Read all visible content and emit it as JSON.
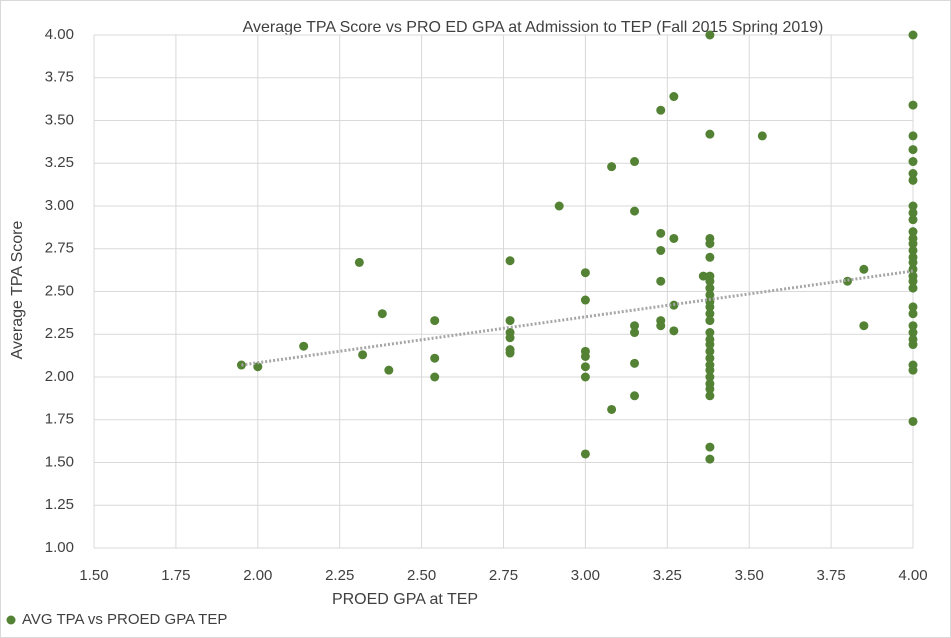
{
  "chart_data": {
    "type": "scatter",
    "title": "Average TPA Score vs PRO ED GPA at Admission to TEP (Fall 2015 Spring 2019)",
    "x_label": "PROED GPA at TEP",
    "y_label": "Average TPA Score",
    "xlim": [
      1.5,
      4.0
    ],
    "ylim": [
      1.0,
      4.0
    ],
    "xticks": [
      {
        "value": 1.5,
        "label": "1.50"
      },
      {
        "value": 1.75,
        "label": "1.75"
      },
      {
        "value": 2.0,
        "label": "2.00"
      },
      {
        "value": 2.25,
        "label": "2.25"
      },
      {
        "value": 2.5,
        "label": "2.50"
      },
      {
        "value": 2.75,
        "label": "2.75"
      },
      {
        "value": 3.0,
        "label": "3.00"
      },
      {
        "value": 3.25,
        "label": "3.25"
      },
      {
        "value": 3.5,
        "label": "3.50"
      },
      {
        "value": 3.75,
        "label": "3.75"
      },
      {
        "value": 4.0,
        "label": "4.00"
      }
    ],
    "yticks": [
      {
        "value": 1.0,
        "label": "1.00"
      },
      {
        "value": 1.25,
        "label": "1.25"
      },
      {
        "value": 1.5,
        "label": "1.50"
      },
      {
        "value": 1.75,
        "label": "1.75"
      },
      {
        "value": 2.0,
        "label": "2.00"
      },
      {
        "value": 2.25,
        "label": "2.25"
      },
      {
        "value": 2.5,
        "label": "2.50"
      },
      {
        "value": 2.75,
        "label": "2.75"
      },
      {
        "value": 3.0,
        "label": "3.00"
      },
      {
        "value": 3.25,
        "label": "3.25"
      },
      {
        "value": 3.5,
        "label": "3.50"
      },
      {
        "value": 3.75,
        "label": "3.75"
      },
      {
        "value": 4.0,
        "label": "4.00"
      }
    ],
    "grid": true,
    "legend": "bottom-left",
    "series": [
      {
        "name": "AVG TPA vs PROED GPA TEP",
        "color": "#548235",
        "x": [
          1.95,
          2.0,
          2.14,
          2.31,
          2.32,
          2.38,
          2.4,
          2.54,
          2.54,
          2.54,
          2.77,
          2.77,
          2.77,
          2.77,
          2.77,
          2.77,
          2.92,
          3.0,
          3.0,
          3.0,
          3.0,
          3.0,
          3.0,
          3.0,
          3.08,
          3.08,
          3.15,
          3.15,
          3.15,
          3.15,
          3.15,
          3.15,
          3.23,
          3.23,
          3.23,
          3.23,
          3.23,
          3.23,
          3.27,
          3.27,
          3.27,
          3.27,
          3.36,
          3.38,
          3.38,
          3.38,
          3.38,
          3.38,
          3.38,
          3.38,
          3.38,
          3.38,
          3.38,
          3.38,
          3.38,
          3.38,
          3.38,
          3.38,
          3.38,
          3.38,
          3.38,
          3.38,
          3.38,
          3.38,
          3.38,
          3.38,
          3.38,
          3.38,
          3.38,
          3.54,
          3.8,
          3.85,
          3.85,
          4.0,
          4.0,
          4.0,
          4.0,
          4.0,
          4.0,
          4.0,
          4.0,
          4.0,
          4.0,
          4.0,
          4.0,
          4.0,
          4.0,
          4.0,
          4.0,
          4.0,
          4.0,
          4.0,
          4.0,
          4.0,
          4.0,
          4.0,
          4.0,
          4.0,
          4.0,
          4.0,
          4.0,
          4.0
        ],
        "values": [
          2.07,
          2.06,
          2.18,
          2.67,
          2.13,
          2.37,
          2.04,
          2.33,
          2.11,
          2.0,
          2.68,
          2.33,
          2.26,
          2.23,
          2.16,
          2.14,
          3.0,
          2.61,
          2.45,
          2.15,
          2.12,
          2.06,
          2.0,
          1.55,
          1.81,
          3.23,
          3.26,
          2.97,
          2.3,
          2.26,
          2.08,
          1.89,
          3.56,
          2.84,
          2.74,
          2.56,
          2.33,
          2.3,
          3.64,
          2.81,
          2.42,
          2.27,
          2.59,
          4.0,
          3.42,
          2.81,
          2.78,
          2.7,
          2.59,
          2.56,
          2.52,
          2.48,
          2.44,
          2.41,
          2.37,
          2.33,
          2.26,
          2.22,
          2.19,
          2.15,
          2.11,
          2.07,
          2.04,
          2.0,
          1.96,
          1.93,
          1.89,
          1.59,
          1.52,
          3.41,
          2.56,
          2.63,
          2.3,
          4.0,
          3.59,
          3.41,
          3.33,
          3.26,
          3.19,
          3.15,
          3.0,
          2.96,
          2.92,
          2.85,
          2.81,
          2.78,
          2.74,
          2.7,
          2.67,
          2.63,
          2.59,
          2.56,
          2.52,
          2.41,
          2.37,
          2.3,
          2.26,
          2.22,
          2.19,
          2.07,
          2.04,
          1.74
        ]
      }
    ],
    "trendline": {
      "color": "#a6a6a6",
      "x": [
        1.95,
        4.0
      ],
      "y": [
        2.07,
        2.62
      ]
    }
  }
}
